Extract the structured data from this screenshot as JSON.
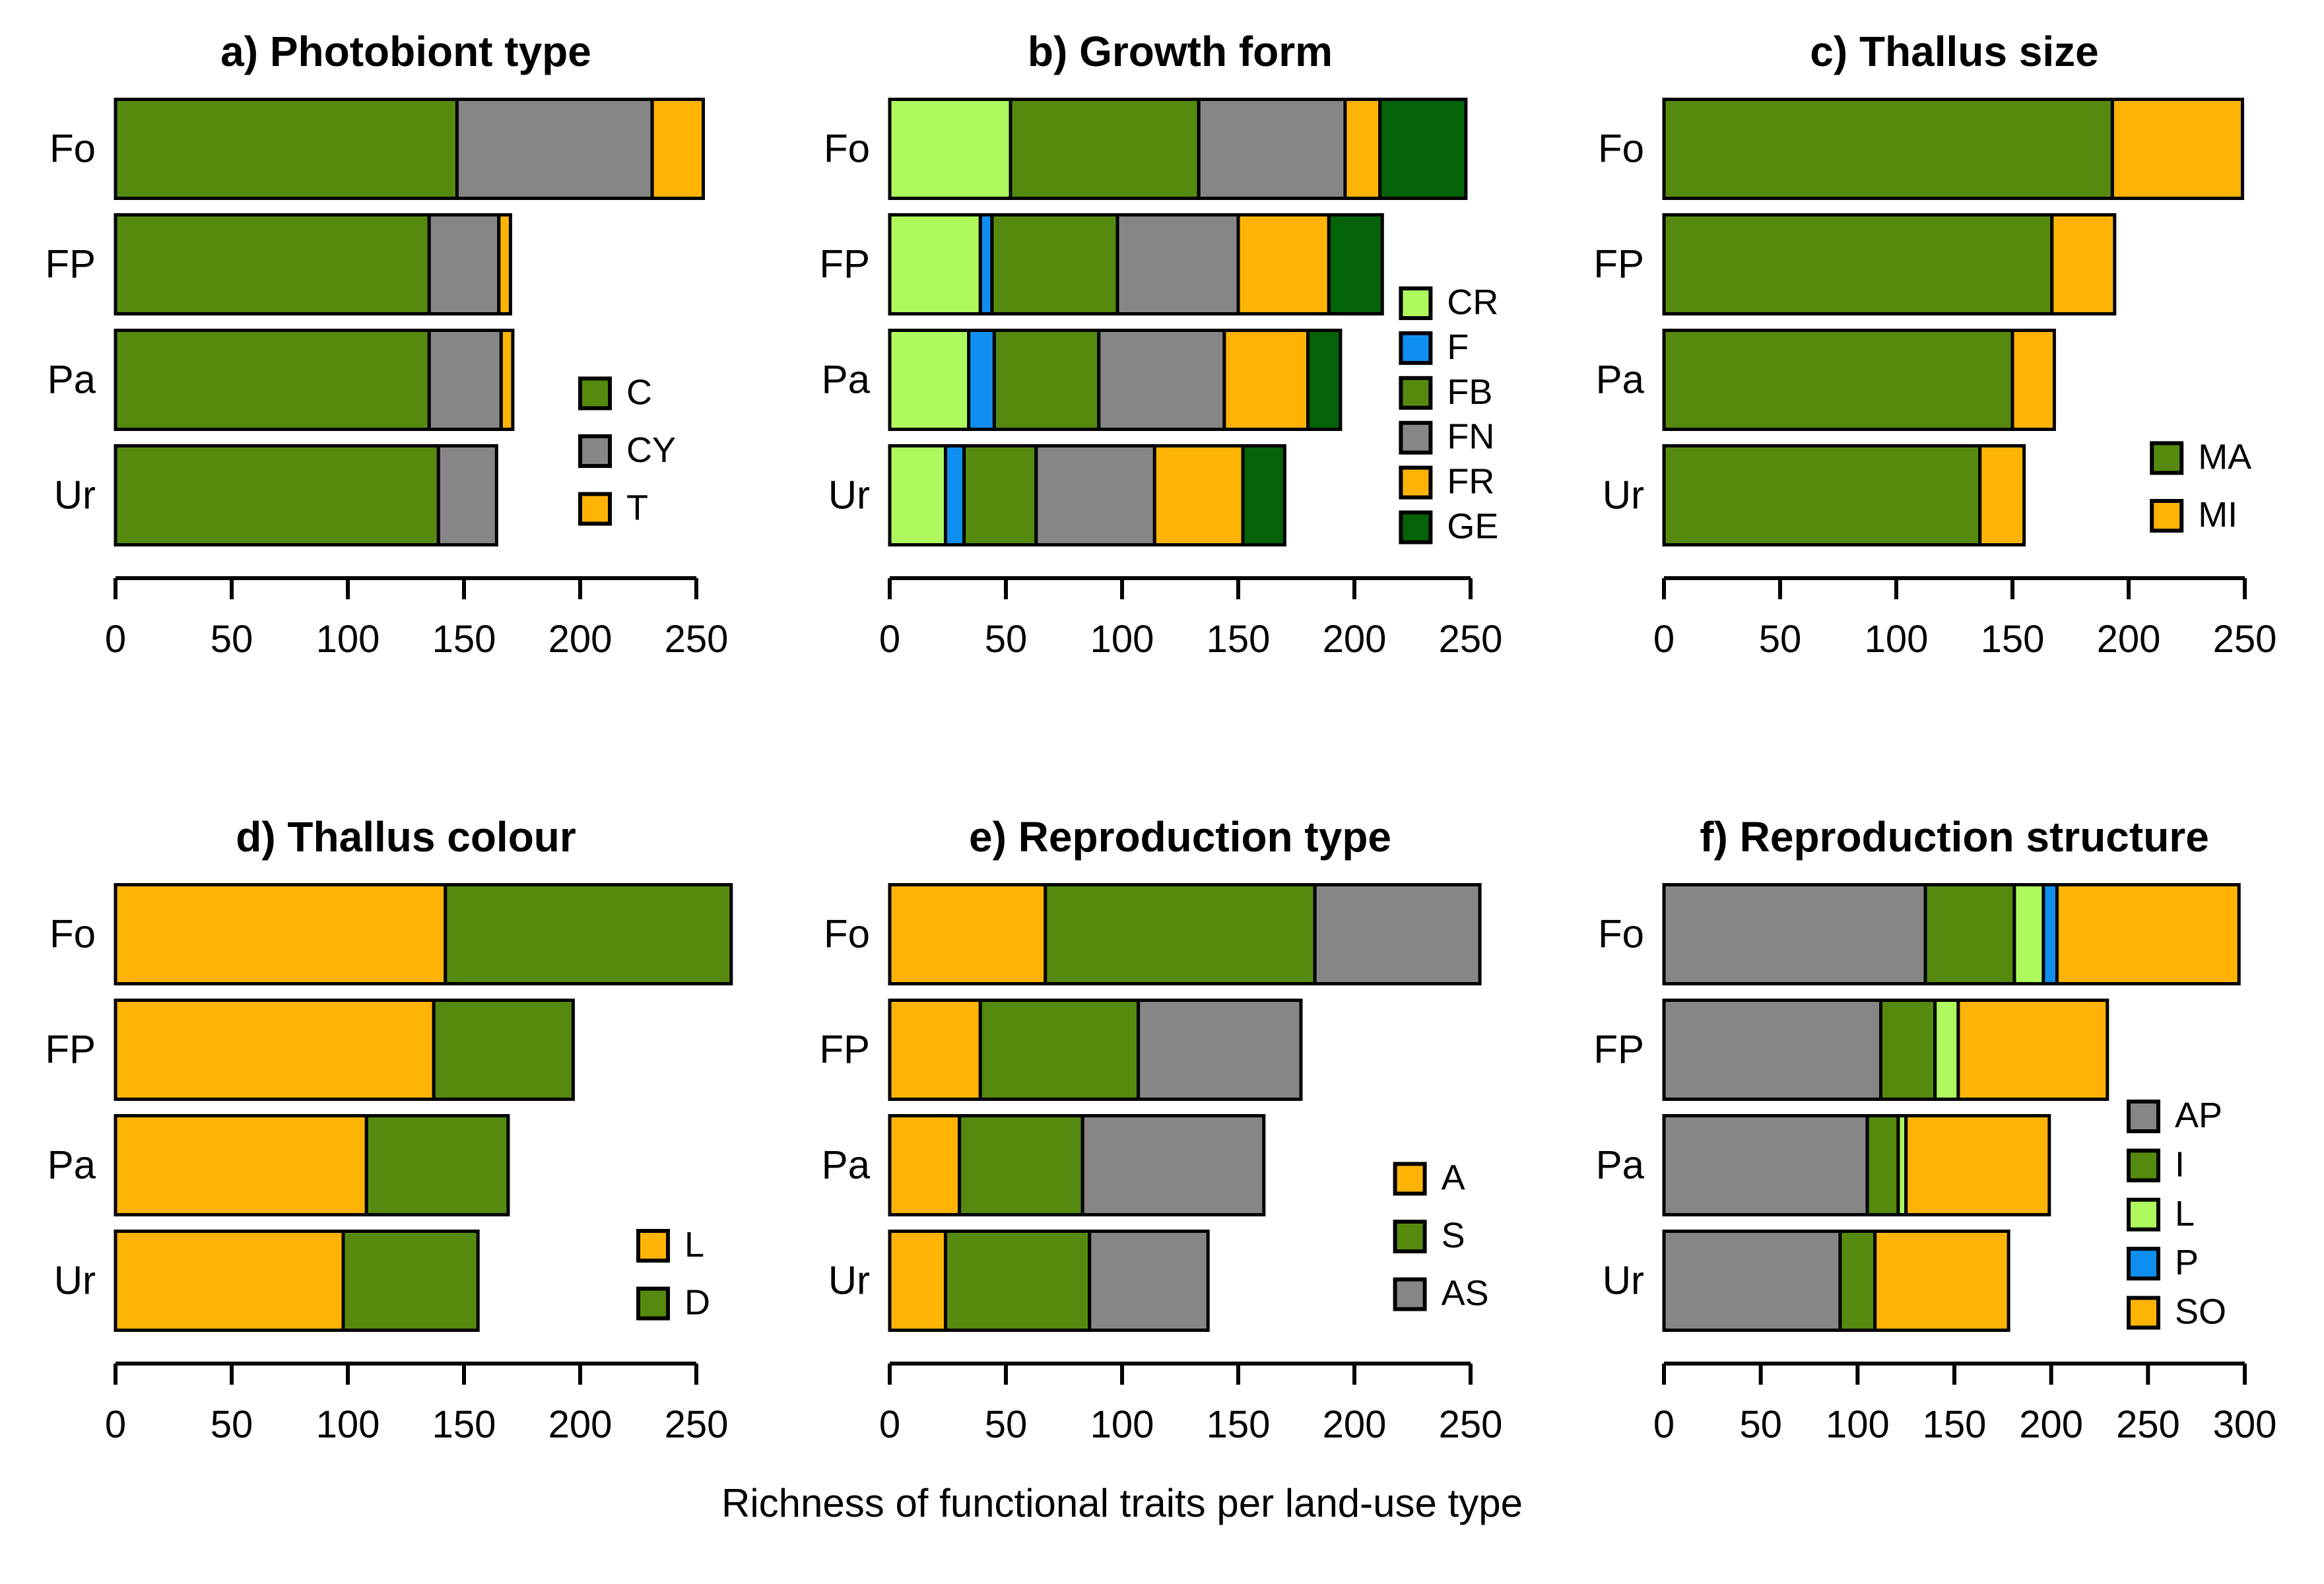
{
  "figure": {
    "xlabel": "Richness of functional traits per land-use type"
  },
  "chart_data": [
    {
      "id": "a",
      "type": "bar",
      "orientation": "horizontal",
      "stacked": true,
      "title": "a) Photobiont type",
      "categories": [
        "Fo",
        "FP",
        "Pa",
        "Ur"
      ],
      "series": [
        {
          "name": "C",
          "color": "#568A0E",
          "values": [
            147,
            135,
            135,
            139
          ]
        },
        {
          "name": "CY",
          "color": "#868686",
          "values": [
            84,
            30,
            31,
            25
          ]
        },
        {
          "name": "T",
          "color": "#FFB405",
          "values": [
            22,
            5,
            5,
            0
          ]
        }
      ],
      "xlim": [
        0,
        250
      ],
      "ticks": [
        0,
        50,
        100,
        150,
        200,
        250
      ],
      "grid": false,
      "legend_position": {
        "x": 0.8,
        "y": 0.655
      }
    },
    {
      "id": "b",
      "type": "bar",
      "orientation": "horizontal",
      "stacked": true,
      "title": "b) Growth form",
      "categories": [
        "Fo",
        "FP",
        "Pa",
        "Ur"
      ],
      "series": [
        {
          "name": "CR",
          "color": "#ADF95E",
          "values": [
            52,
            39,
            34,
            24
          ]
        },
        {
          "name": "F",
          "color": "#0E8FF0",
          "values": [
            0,
            5,
            11,
            8
          ]
        },
        {
          "name": "FB",
          "color": "#568A0E",
          "values": [
            81,
            54,
            45,
            31
          ]
        },
        {
          "name": "FN",
          "color": "#868686",
          "values": [
            63,
            52,
            54,
            51
          ]
        },
        {
          "name": "FR",
          "color": "#FFB405",
          "values": [
            15,
            39,
            36,
            38
          ]
        },
        {
          "name": "GE",
          "color": "#046308",
          "values": [
            37,
            23,
            14,
            18
          ]
        }
      ],
      "xlim": [
        0,
        250
      ],
      "ticks": [
        0,
        50,
        100,
        150,
        200,
        250
      ],
      "grid": false,
      "legend_position": {
        "x": 0.88,
        "y": 0.46
      }
    },
    {
      "id": "c",
      "type": "bar",
      "orientation": "horizontal",
      "stacked": true,
      "title": "c) Thallus size",
      "categories": [
        "Fo",
        "FP",
        "Pa",
        "Ur"
      ],
      "series": [
        {
          "name": "MA",
          "color": "#568A0E",
          "values": [
            193,
            167,
            150,
            136
          ]
        },
        {
          "name": "MI",
          "color": "#FFB405",
          "values": [
            56,
            27,
            18,
            19
          ]
        }
      ],
      "xlim": [
        0,
        250
      ],
      "ticks": [
        0,
        50,
        100,
        150,
        200,
        250
      ],
      "grid": false,
      "legend_position": {
        "x": 0.84,
        "y": 0.795
      }
    },
    {
      "id": "d",
      "type": "bar",
      "orientation": "horizontal",
      "stacked": true,
      "title": "d) Thallus colour",
      "categories": [
        "Fo",
        "FP",
        "Pa",
        "Ur"
      ],
      "series": [
        {
          "name": "L",
          "color": "#FFB405",
          "values": [
            142,
            137,
            108,
            98
          ]
        },
        {
          "name": "D",
          "color": "#568A0E",
          "values": [
            123,
            60,
            61,
            58
          ]
        }
      ],
      "xlim": [
        0,
        250
      ],
      "ticks": [
        0,
        50,
        100,
        150,
        200,
        250
      ],
      "grid": false,
      "legend_position": {
        "x": 0.9,
        "y": 0.8
      }
    },
    {
      "id": "e",
      "type": "bar",
      "orientation": "horizontal",
      "stacked": true,
      "title": "e) Reproduction type",
      "categories": [
        "Fo",
        "FP",
        "Pa",
        "Ur"
      ],
      "series": [
        {
          "name": "A",
          "color": "#FFB405",
          "values": [
            67,
            39,
            30,
            24
          ]
        },
        {
          "name": "S",
          "color": "#568A0E",
          "values": [
            116,
            68,
            53,
            62
          ]
        },
        {
          "name": "AS",
          "color": "#868686",
          "values": [
            71,
            70,
            78,
            51
          ]
        }
      ],
      "xlim": [
        0,
        250
      ],
      "ticks": [
        0,
        50,
        100,
        150,
        200,
        250
      ],
      "grid": false,
      "legend_position": {
        "x": 0.87,
        "y": 0.655
      }
    },
    {
      "id": "f",
      "type": "bar",
      "orientation": "horizontal",
      "stacked": true,
      "title": "f) Reproduction structure",
      "categories": [
        "Fo",
        "FP",
        "Pa",
        "Ur"
      ],
      "series": [
        {
          "name": "AP",
          "color": "#868686",
          "values": [
            135,
            112,
            105,
            91
          ]
        },
        {
          "name": "I",
          "color": "#568A0E",
          "values": [
            46,
            28,
            16,
            18
          ]
        },
        {
          "name": "L",
          "color": "#ADF95E",
          "values": [
            15,
            12,
            4,
            0
          ]
        },
        {
          "name": "P",
          "color": "#0E8FF0",
          "values": [
            7,
            0,
            0,
            0
          ]
        },
        {
          "name": "SO",
          "color": "#FFB405",
          "values": [
            94,
            77,
            74,
            69
          ]
        }
      ],
      "xlim": [
        0,
        300
      ],
      "ticks": [
        0,
        50,
        100,
        150,
        200,
        250,
        300
      ],
      "grid": false,
      "legend_position": {
        "x": 0.8,
        "y": 0.52
      }
    }
  ]
}
